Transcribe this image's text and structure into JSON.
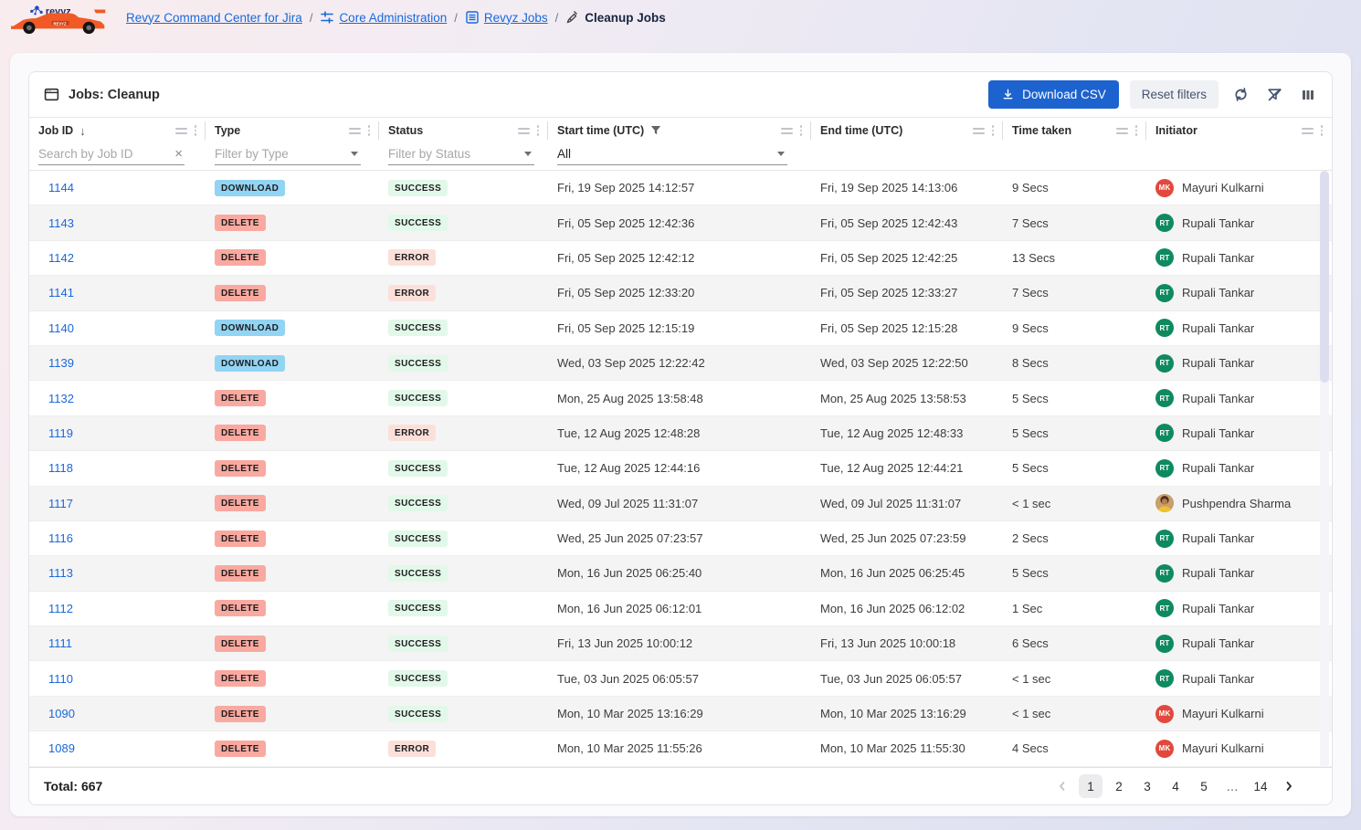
{
  "topbar": {
    "logo_alt": "revyz",
    "breadcrumb": [
      {
        "label": "Revyz Command Center for Jira"
      },
      {
        "label": "Core Administration"
      },
      {
        "label": "Revyz Jobs"
      },
      {
        "label": "Cleanup Jobs"
      }
    ]
  },
  "panel": {
    "title": "Jobs: Cleanup",
    "buttons": {
      "download_csv": "Download CSV",
      "reset_filters": "Reset filters"
    }
  },
  "table": {
    "columns": [
      {
        "label": "Job ID",
        "sorted": "desc"
      },
      {
        "label": "Type"
      },
      {
        "label": "Status"
      },
      {
        "label": "Start time (UTC)",
        "filter_active": true
      },
      {
        "label": "End time (UTC)"
      },
      {
        "label": "Time taken"
      },
      {
        "label": "Initiator"
      }
    ],
    "filters": {
      "job_id_placeholder": "Search by Job ID",
      "type_placeholder": "Filter by Type",
      "status_placeholder": "Filter by Status",
      "start_time_value": "All"
    },
    "rows": [
      {
        "job_id": "1144",
        "type": "DOWNLOAD",
        "status": "SUCCESS",
        "start": "Fri, 19 Sep 2025 14:12:57",
        "end": "Fri, 19 Sep 2025 14:13:06",
        "time_taken": "9 Secs",
        "initiator": "Mayuri Kulkarni",
        "avatar": "MK"
      },
      {
        "job_id": "1143",
        "type": "DELETE",
        "status": "SUCCESS",
        "start": "Fri, 05 Sep 2025 12:42:36",
        "end": "Fri, 05 Sep 2025 12:42:43",
        "time_taken": "7 Secs",
        "initiator": "Rupali Tankar",
        "avatar": "RT"
      },
      {
        "job_id": "1142",
        "type": "DELETE",
        "status": "ERROR",
        "start": "Fri, 05 Sep 2025 12:42:12",
        "end": "Fri, 05 Sep 2025 12:42:25",
        "time_taken": "13 Secs",
        "initiator": "Rupali Tankar",
        "avatar": "RT"
      },
      {
        "job_id": "1141",
        "type": "DELETE",
        "status": "ERROR",
        "start": "Fri, 05 Sep 2025 12:33:20",
        "end": "Fri, 05 Sep 2025 12:33:27",
        "time_taken": "7 Secs",
        "initiator": "Rupali Tankar",
        "avatar": "RT"
      },
      {
        "job_id": "1140",
        "type": "DOWNLOAD",
        "status": "SUCCESS",
        "start": "Fri, 05 Sep 2025 12:15:19",
        "end": "Fri, 05 Sep 2025 12:15:28",
        "time_taken": "9 Secs",
        "initiator": "Rupali Tankar",
        "avatar": "RT"
      },
      {
        "job_id": "1139",
        "type": "DOWNLOAD",
        "status": "SUCCESS",
        "start": "Wed, 03 Sep 2025 12:22:42",
        "end": "Wed, 03 Sep 2025 12:22:50",
        "time_taken": "8 Secs",
        "initiator": "Rupali Tankar",
        "avatar": "RT"
      },
      {
        "job_id": "1132",
        "type": "DELETE",
        "status": "SUCCESS",
        "start": "Mon, 25 Aug 2025 13:58:48",
        "end": "Mon, 25 Aug 2025 13:58:53",
        "time_taken": "5 Secs",
        "initiator": "Rupali Tankar",
        "avatar": "RT"
      },
      {
        "job_id": "1119",
        "type": "DELETE",
        "status": "ERROR",
        "start": "Tue, 12 Aug 2025 12:48:28",
        "end": "Tue, 12 Aug 2025 12:48:33",
        "time_taken": "5 Secs",
        "initiator": "Rupali Tankar",
        "avatar": "RT"
      },
      {
        "job_id": "1118",
        "type": "DELETE",
        "status": "SUCCESS",
        "start": "Tue, 12 Aug 2025 12:44:16",
        "end": "Tue, 12 Aug 2025 12:44:21",
        "time_taken": "5 Secs",
        "initiator": "Rupali Tankar",
        "avatar": "RT"
      },
      {
        "job_id": "1117",
        "type": "DELETE",
        "status": "SUCCESS",
        "start": "Wed, 09 Jul 2025 11:31:07",
        "end": "Wed, 09 Jul 2025 11:31:07",
        "time_taken": "< 1 sec",
        "initiator": "Pushpendra Sharma",
        "avatar": "photo"
      },
      {
        "job_id": "1116",
        "type": "DELETE",
        "status": "SUCCESS",
        "start": "Wed, 25 Jun 2025 07:23:57",
        "end": "Wed, 25 Jun 2025 07:23:59",
        "time_taken": "2 Secs",
        "initiator": "Rupali Tankar",
        "avatar": "RT"
      },
      {
        "job_id": "1113",
        "type": "DELETE",
        "status": "SUCCESS",
        "start": "Mon, 16 Jun 2025 06:25:40",
        "end": "Mon, 16 Jun 2025 06:25:45",
        "time_taken": "5 Secs",
        "initiator": "Rupali Tankar",
        "avatar": "RT"
      },
      {
        "job_id": "1112",
        "type": "DELETE",
        "status": "SUCCESS",
        "start": "Mon, 16 Jun 2025 06:12:01",
        "end": "Mon, 16 Jun 2025 06:12:02",
        "time_taken": "1 Sec",
        "initiator": "Rupali Tankar",
        "avatar": "RT"
      },
      {
        "job_id": "1111",
        "type": "DELETE",
        "status": "SUCCESS",
        "start": "Fri, 13 Jun 2025 10:00:12",
        "end": "Fri, 13 Jun 2025 10:00:18",
        "time_taken": "6 Secs",
        "initiator": "Rupali Tankar",
        "avatar": "RT"
      },
      {
        "job_id": "1110",
        "type": "DELETE",
        "status": "SUCCESS",
        "start": "Tue, 03 Jun 2025 06:05:57",
        "end": "Tue, 03 Jun 2025 06:05:57",
        "time_taken": "< 1 sec",
        "initiator": "Rupali Tankar",
        "avatar": "RT"
      },
      {
        "job_id": "1090",
        "type": "DELETE",
        "status": "SUCCESS",
        "start": "Mon, 10 Mar 2025 13:16:29",
        "end": "Mon, 10 Mar 2025 13:16:29",
        "time_taken": "< 1 sec",
        "initiator": "Mayuri Kulkarni",
        "avatar": "MK"
      },
      {
        "job_id": "1089",
        "type": "DELETE",
        "status": "ERROR",
        "start": "Mon, 10 Mar 2025 11:55:26",
        "end": "Mon, 10 Mar 2025 11:55:30",
        "time_taken": "4 Secs",
        "initiator": "Mayuri Kulkarni",
        "avatar": "MK"
      }
    ]
  },
  "footer": {
    "total": "Total: 667",
    "pages": [
      "1",
      "2",
      "3",
      "4",
      "5",
      "…",
      "14"
    ],
    "current_page": "1"
  },
  "colors": {
    "accent_blue": "#1D63CF",
    "link_blue": "#1868DB",
    "logo_orange": "#F15A24",
    "badge": {
      "DOWNLOAD": "#92D4F3",
      "DELETE": "#F9A9A0",
      "SUCCESS": "#E2F8E9",
      "ERROR": "#FBE0DA"
    },
    "avatar": {
      "MK": "#E2483D",
      "RT": "#0E8A5F"
    }
  },
  "icons": {
    "logo": "race-car",
    "breadcrumb_core_administration": "sliders-icon",
    "breadcrumb_revyz_jobs": "list-icon",
    "breadcrumb_cleanup_jobs": "broom-icon",
    "panel_title": "window-icon",
    "download_csv": "download-icon",
    "toolbar": [
      "refresh-icon",
      "filter-off-icon",
      "columns-icon"
    ],
    "column_header": [
      "column-menu-icon",
      "column-dots-icon"
    ],
    "job_id_sort": "sort-desc-arrow-icon",
    "start_time_filter": "funnel-icon",
    "job_id_clear": "clear-x-icon",
    "dropdown": "caret-down-icon",
    "pagination": [
      "chevron-left-icon",
      "chevron-right-icon"
    ]
  }
}
